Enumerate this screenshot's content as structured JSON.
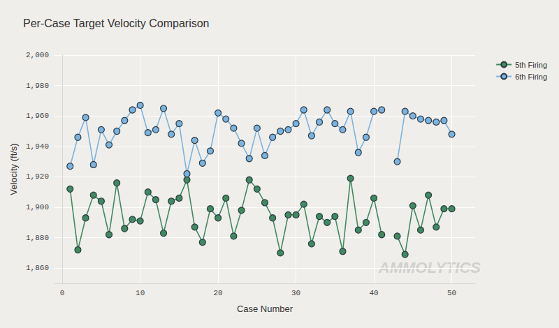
{
  "chart_data": {
    "type": "line",
    "title": "Per-Case Target Velocity Comparison",
    "x_label": "Case Number",
    "y_label": "Velocity (ft/s)",
    "annotations": [
      "AMMOLYTICS"
    ],
    "x": [
      1,
      2,
      3,
      4,
      5,
      6,
      7,
      8,
      9,
      10,
      11,
      12,
      13,
      14,
      15,
      16,
      17,
      18,
      19,
      20,
      21,
      22,
      23,
      24,
      25,
      26,
      27,
      28,
      29,
      30,
      31,
      32,
      33,
      34,
      35,
      36,
      37,
      38,
      39,
      40,
      41,
      42,
      43,
      44,
      45,
      46,
      47,
      48,
      49,
      50
    ],
    "series": [
      {
        "name": "5th Firing",
        "color": "#3f8a5e",
        "marker": "circle",
        "line_style": "solid",
        "values": [
          1912,
          1872,
          1893,
          1908,
          1904,
          1882,
          1916,
          1886,
          1892,
          1891,
          1910,
          1905,
          1883,
          1904,
          1906,
          1918,
          1887,
          1877,
          1899,
          1893,
          1906,
          1881,
          1898,
          1918,
          1912,
          1903,
          1893,
          1870,
          1895,
          1895,
          1902,
          1876,
          1894,
          1890,
          1894,
          1871,
          1919,
          1885,
          1890,
          1906,
          1882,
          null,
          1881,
          1869,
          1901,
          1885,
          1908,
          1887,
          1899,
          1899
        ]
      },
      {
        "name": "6th Firing",
        "color": "#7ab3e0",
        "marker": "circle",
        "line_style": "solid",
        "values": [
          1927,
          1946,
          1959,
          1928,
          1951,
          1941,
          1950,
          1957,
          1964,
          1967,
          1949,
          1951,
          1965,
          1948,
          1955,
          1922,
          1944,
          1929,
          1937,
          1962,
          1958,
          1952,
          1942,
          1932,
          1952,
          1934,
          1946,
          1950,
          1951,
          1955,
          1964,
          1947,
          1956,
          1964,
          1955,
          1951,
          1963,
          1936,
          1946,
          1963,
          1964,
          null,
          1930,
          1963,
          1960,
          1958,
          1957,
          1956,
          1957,
          1948
        ]
      }
    ],
    "xlim": [
      -1,
      53
    ],
    "xticks": [
      0,
      10,
      20,
      30,
      40,
      50
    ],
    "ylim": [
      1850,
      2000
    ],
    "yticks": [
      1860,
      1880,
      1900,
      1920,
      1940,
      1960,
      1980,
      2000
    ],
    "grid": true,
    "legend": "top-right"
  }
}
